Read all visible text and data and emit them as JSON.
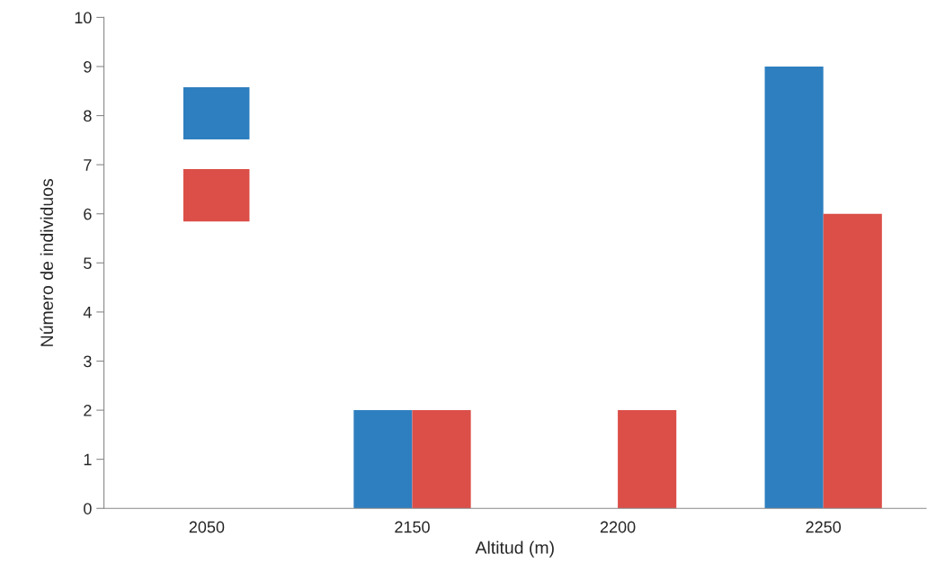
{
  "chart_data": {
    "type": "bar",
    "xlabel": "Altitud (m)",
    "ylabel": "Número de individuos",
    "categories": [
      "2050",
      "2150",
      "2200",
      "2250"
    ],
    "series": [
      {
        "color": "#2e7fc0",
        "values": [
          0,
          2,
          0,
          9
        ]
      },
      {
        "color": "#db4f48",
        "values": [
          0,
          2,
          2,
          6
        ]
      }
    ],
    "ylim": [
      0,
      10
    ],
    "yticks": [
      0,
      1,
      2,
      3,
      4,
      5,
      6,
      7,
      8,
      9,
      10
    ],
    "grid": false
  }
}
